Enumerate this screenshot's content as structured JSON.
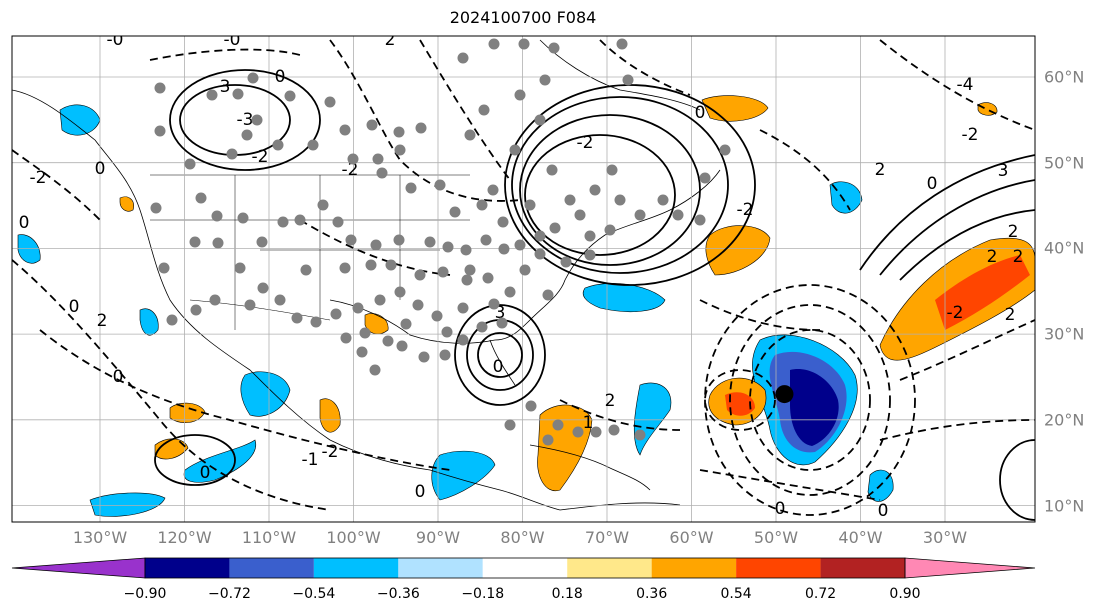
{
  "title": "2024100700 F084",
  "lon_labels": [
    "130°W",
    "120°W",
    "110°W",
    "100°W",
    "90°W",
    "80°W",
    "70°W",
    "60°W",
    "50°W",
    "40°W",
    "30°W"
  ],
  "lat_labels": [
    "60°N",
    "50°N",
    "40°N",
    "30°N",
    "20°N",
    "10°N"
  ],
  "colorbar": {
    "ticks": [
      "−0.90",
      "−0.72",
      "−0.54",
      "−0.36",
      "−0.18",
      "0.18",
      "0.36",
      "0.54",
      "0.72",
      "0.90"
    ],
    "colors": [
      "#9932cc",
      "#00008b",
      "#3a5fcd",
      "#00bfff",
      "#b0e2ff",
      "#ffffff",
      "#ffe88a",
      "#ffa500",
      "#ff4500",
      "#b22222",
      "#ff88b4"
    ]
  },
  "contour_labels": [
    "-0",
    "-1",
    "-2",
    "-3",
    "0",
    "1",
    "2",
    "3",
    "-4"
  ],
  "marker": {
    "lon": -49,
    "lat": 23
  }
}
